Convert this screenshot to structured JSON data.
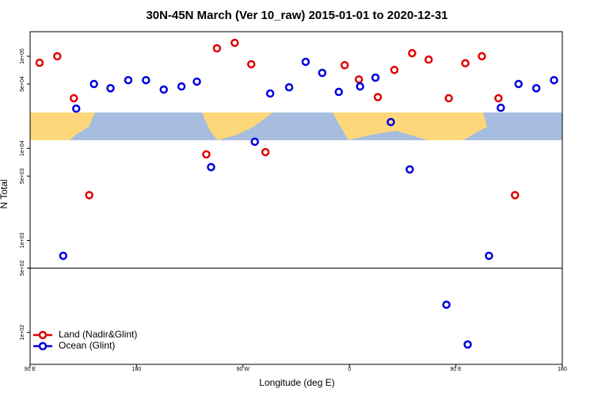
{
  "chart_data": {
    "type": "scatter",
    "title": "30N-45N March (Ver 10_raw)   2015-01-01 to 2020-12-31",
    "xlabel": "Longitude (deg E)",
    "ylabel": "N Total",
    "xlim": [
      90,
      540
    ],
    "ylim": [
      45,
      185000
    ],
    "log_y": true,
    "legend": "lower left",
    "hline": 500,
    "xticks": [
      {
        "value": 90,
        "label": "90 E"
      },
      {
        "value": 180,
        "label": "180"
      },
      {
        "value": 270,
        "label": "90 W"
      },
      {
        "value": 360,
        "label": "0"
      },
      {
        "value": 450,
        "label": "90 E"
      },
      {
        "value": 540,
        "label": "180"
      }
    ],
    "yticks": [
      {
        "value": 100000,
        "label": "1e+05"
      },
      {
        "value": 50000,
        "label": "5e+04"
      },
      {
        "value": 10000,
        "label": "1e+04"
      },
      {
        "value": 5000,
        "label": "5e+03"
      },
      {
        "value": 1000,
        "label": "1e+03"
      },
      {
        "value": 500,
        "label": "5e+02"
      },
      {
        "value": 100,
        "label": "1e+02"
      }
    ],
    "series": [
      {
        "name": "Land (Nadir&Glint)",
        "color": "#e00000",
        "x": [
          98,
          113,
          127,
          140,
          239,
          248,
          263,
          277,
          289,
          356,
          368,
          384,
          398,
          413,
          427,
          444,
          458,
          472,
          486,
          500
        ],
        "values": [
          85000,
          100000,
          35000,
          3100,
          8600,
          122000,
          140000,
          82000,
          9100,
          80000,
          56000,
          36000,
          71000,
          108000,
          92000,
          35000,
          84000,
          100000,
          35000,
          3100
        ]
      },
      {
        "name": "Ocean (Glint)",
        "color": "#0000dd",
        "x": [
          118,
          129,
          144,
          158,
          173,
          188,
          203,
          218,
          231,
          243,
          280,
          293,
          309,
          323,
          337,
          351,
          369,
          382,
          395,
          411,
          442,
          460,
          478,
          488,
          503,
          518,
          533
        ],
        "values": [
          680,
          27000,
          50000,
          45000,
          55000,
          55000,
          43500,
          47000,
          53000,
          6250,
          11800,
          39400,
          46000,
          87000,
          66000,
          41000,
          47000,
          58600,
          19300,
          5900,
          200,
          74,
          680,
          27600,
          50000,
          45000,
          55000
        ]
      }
    ]
  }
}
